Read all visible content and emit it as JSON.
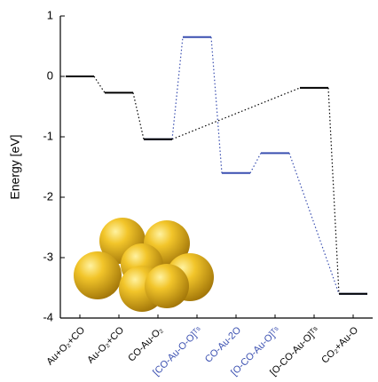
{
  "chart_data": {
    "type": "energy-levels",
    "y_label": "Energy [eV]",
    "categories": [
      "Au+O₂+CO",
      "Au-O₂+CO",
      "CO-Au-O₂",
      "[CO-Au-O-O]ᵀˢ",
      "CO-Au-2O",
      "[O-CO-Au-O]ᵀˢ",
      "[O-CO-Au-O]ᵀˢ",
      "CO₂+Au-O"
    ],
    "series": [
      {
        "color": "#3a4fb0",
        "values": [
          null,
          null,
          -1.04,
          0.65,
          -1.6,
          -1.27,
          null,
          -3.6
        ]
      },
      {
        "color": "#000000",
        "values": [
          0,
          -0.27,
          -1.04,
          null,
          null,
          null,
          -0.19,
          -3.6
        ]
      }
    ],
    "ylim": [
      -4,
      1
    ],
    "yticks": [
      1,
      0,
      -1,
      -2,
      -3,
      -4
    ]
  }
}
